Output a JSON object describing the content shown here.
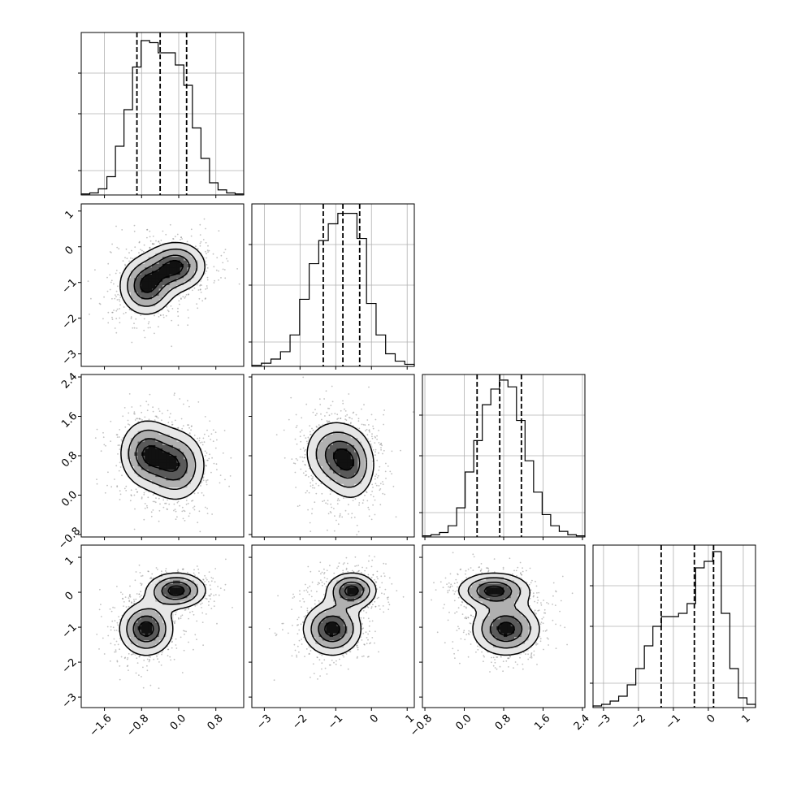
{
  "chart_data": {
    "type": "corner",
    "n_params": 4,
    "params": [
      {
        "range": [
          -2.1,
          1.4
        ],
        "ticks": [
          -1.6,
          -0.8,
          0.0,
          0.8
        ],
        "tick_labels": [
          "−1.6",
          "−0.8",
          "0.0",
          "0.8"
        ]
      },
      {
        "range": [
          -3.35,
          1.2
        ],
        "ticks": [
          -3,
          -2,
          -1,
          0,
          1
        ],
        "tick_labels": [
          "−3",
          "−2",
          "−1",
          "0",
          "1"
        ]
      },
      {
        "range": [
          -0.85,
          2.45
        ],
        "ticks": [
          -0.8,
          0.0,
          0.8,
          1.6,
          2.4
        ],
        "tick_labels": [
          "−0.8",
          "0.0",
          "0.8",
          "1.6",
          "2.4"
        ]
      },
      {
        "range": [
          -3.3,
          1.35
        ],
        "ticks": [
          -3,
          -2,
          -1,
          0,
          1
        ],
        "tick_labels": [
          "−3",
          "−2",
          "−1",
          "0",
          "1"
        ]
      }
    ],
    "histograms": [
      {
        "bin_edges_range": [
          -2.1,
          1.4
        ],
        "counts": [
          1,
          2,
          6,
          18,
          48,
          84,
          126,
          152,
          150,
          140,
          140,
          128,
          108,
          66,
          36,
          12,
          5,
          2,
          1
        ],
        "peak": 160,
        "quantiles": [
          -0.9,
          -0.4,
          0.17
        ]
      },
      {
        "bin_edges_range": [
          -3.35,
          1.2
        ],
        "counts": [
          1,
          3,
          7,
          14,
          30,
          64,
          98,
          120,
          136,
          146,
          146,
          122,
          60,
          30,
          12,
          5,
          2
        ],
        "peak": 155,
        "quantiles": [
          -1.35,
          -0.8,
          -0.33
        ]
      },
      {
        "bin_edges_range": [
          -0.85,
          2.45
        ],
        "counts": [
          1,
          2,
          4,
          10,
          26,
          58,
          86,
          118,
          132,
          140,
          134,
          104,
          68,
          40,
          20,
          10,
          5,
          2,
          1
        ],
        "peak": 145,
        "quantiles": [
          0.26,
          0.72,
          1.16
        ]
      },
      {
        "bin_edges_range": [
          -3.3,
          1.35
        ],
        "counts": [
          1,
          2,
          4,
          7,
          14,
          24,
          38,
          50,
          56,
          56,
          58,
          64,
          86,
          90,
          96,
          58,
          24,
          6,
          2
        ],
        "peak": 100,
        "quantiles": [
          -1.35,
          -0.4,
          0.15
        ]
      }
    ],
    "hist_grid_levels": [
      0.15,
      0.5,
      0.75
    ],
    "modes": [
      {
        "weight": 0.5,
        "mean": [
          -0.7,
          -1.1,
          0.85,
          -1.05
        ],
        "sd": [
          0.32,
          0.45,
          0.38,
          0.42
        ]
      },
      {
        "weight": 0.5,
        "mean": [
          -0.05,
          -0.55,
          0.6,
          0.05
        ],
        "sd": [
          0.35,
          0.38,
          0.4,
          0.28
        ]
      }
    ],
    "contour_levels": [
      0.2,
      0.42,
      0.68,
      0.88
    ],
    "scatter_points_per_panel": 900
  }
}
